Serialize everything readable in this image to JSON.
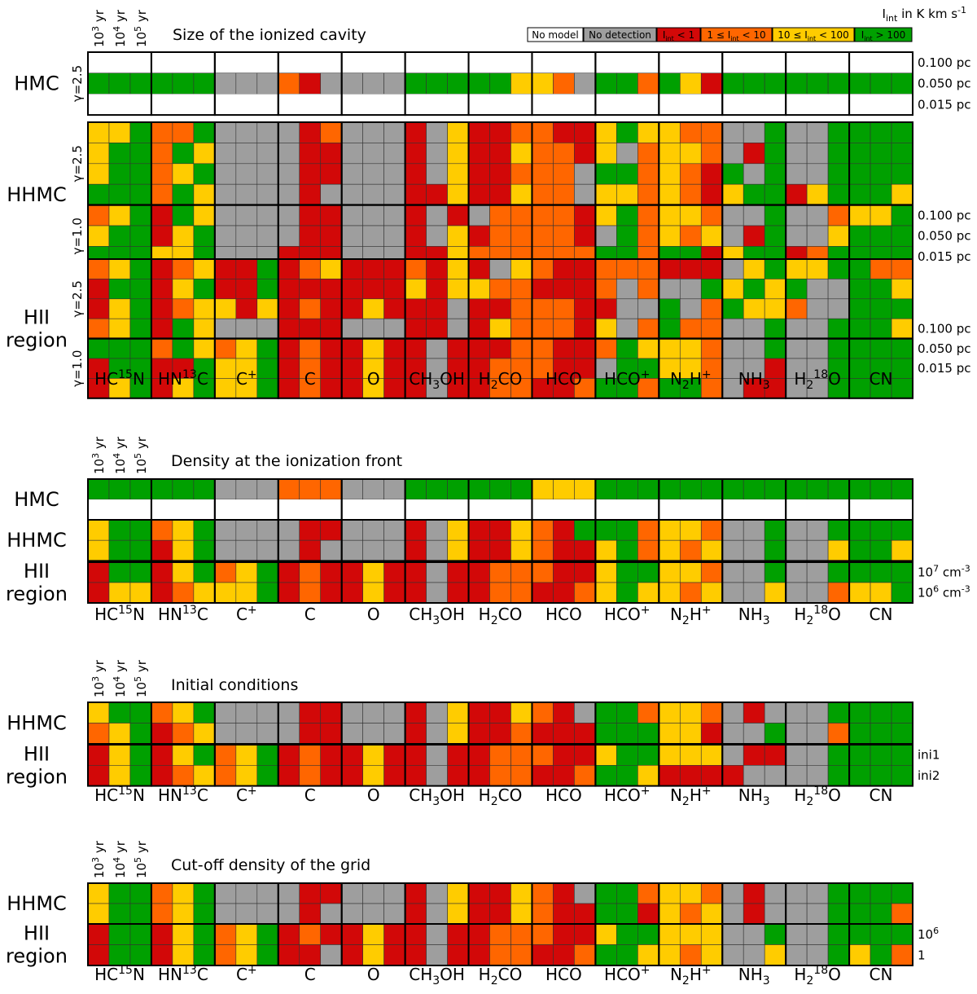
{
  "colors": {
    "W": "#ffffff",
    "G": "#9e9e9e",
    "R": "#d20808",
    "O": "#ff6600",
    "Y": "#ffcc00",
    "E": "#00a000"
  },
  "legend": {
    "title": "I_int in K km s^-1",
    "items": [
      {
        "key": "W",
        "label": "No model"
      },
      {
        "key": "G",
        "label": "No detection"
      },
      {
        "key": "R",
        "label": "I_int < 1"
      },
      {
        "key": "O",
        "label": "1 ≤ I_int < 10"
      },
      {
        "key": "Y",
        "label": "10 ≤ I_int < 100"
      },
      {
        "key": "E",
        "label": "I_int > 100"
      }
    ]
  },
  "time_labels": [
    "10^3 yr",
    "10^4 yr",
    "10^5 yr"
  ],
  "molecules": [
    "HC15N",
    "HN13C",
    "C+",
    "C",
    "O",
    "CH3OH",
    "H2CO",
    "HCO",
    "HCO+",
    "N2H+",
    "NH3",
    "H218O",
    "CN"
  ],
  "chart_data": [
    {
      "type": "heatmap",
      "title": "Size of the ionized cavity",
      "groups": [
        {
          "name": "HMC",
          "sublabels": [
            "γ=2.5"
          ],
          "rows": [
            "WWWWWWWWWWWWWWWWWWWWWWWWWWWWWWWWWWWWWWW",
            "EEEEEEGGGORGGGGEEEEEYYOGEEOEYREEEEEEEEE",
            "WWWWWWWWWWWWWWWWWWWWWWWWWWWWWWWWWWWWWWW"
          ],
          "right_labels": [
            "0.100 pc",
            "0.050 pc",
            "0.015 pc"
          ]
        },
        {
          "name": "HHMC",
          "sublabels": [
            "γ=2.5",
            "γ=1.0"
          ],
          "rows": [
            "YYEOOEGGGGROGGGRGYRROORRYEYYOOGGEGGEEEE",
            "YEEOEYGGGGRRGGGRGYRRYOORYGOYYOGREGGEEEE",
            "YEEOYEGGGGRRGGGRGYRROOOGEEOYOREGEGGEEEE",
            "EEEOEYGGGGRGGGGRRYRRYOOGYYOYORYEERYEEEY",
            "OYEREYGGGGRRGGGRGRGOOOORYEOYYOGGEGGOYYE",
            "YEERYEGGGGRRGGGRGYROOOORGEOYOYGREGGYEEE",
            "EEEYYEGGGRRRGGGRRYOOOOOOEEOEERYEEROEEEE"
          ],
          "right_labels": [
            "",
            "",
            "",
            "",
            "0.100 pc",
            "0.050 pc",
            "0.015 pc"
          ]
        },
        {
          "name": "HII region",
          "sublabels": [
            "γ=2.5",
            "γ=1.0"
          ],
          "rows": [
            "OYEROYRREROYRRRORYRGYORROOORRRGYEYYEEOO",
            "REERYERRERRRRRRYRYYOORRROGOGGEYEYEGGEEY",
            "RYEROYYRYRORRYRRRGRROOORRGGEGOEYYOGGEEE",
            "OYEREYGGGRRRGGGRRGRYOOORYGOEOOGGEGGEEEY",
            "EEEOEYOYERORRYRRGRRROORROEYYYOGGEGGEEEE",
            "REERREYYERORRYRRGRROOORRGEEYYOGGRGGEEEE",
            "RYERYEYYERORRYRRGRROORROEEOEEOGRRGGEEEE"
          ],
          "right_labels": [
            "",
            "",
            "",
            "0.100 pc",
            "0.050 pc",
            "0.015 pc",
            ""
          ]
        }
      ]
    },
    {
      "type": "heatmap",
      "title": "Density at the ionization front",
      "groups": [
        {
          "name": "HMC",
          "sublabels": [],
          "rows": [
            "EEEEEEGGGOOOGGGEEEEEEYYYEEEEEEEEEEEEEEE",
            "WWWWWWWWWWWWWWWWWWWWWWWWWWWWWWWWWWWWWWW"
          ],
          "right_labels": [
            "",
            ""
          ]
        },
        {
          "name": "HHMC",
          "sublabels": [],
          "rows": [
            "YEEOYEGGGGRRGGGRGYRRYOREEEOYYOGGEGGEEEE",
            "YEERYEGGGGRGGGGRGYRRYORRYEOYOYGGEGGYEEY"
          ],
          "right_labels": [
            "",
            ""
          ]
        },
        {
          "name": "HII region",
          "sublabels": [],
          "rows": [
            "REERYEOYERORRYRRGRROOORRYEEYYOGGEGGEEEE",
            "RYYROYYYERORRYRRGRROORROYEYYOYGGYGGOYYE"
          ],
          "right_labels": [
            "10^7 cm^-3",
            "10^6 cm^-3"
          ]
        }
      ]
    },
    {
      "type": "heatmap",
      "title": "Initial conditions",
      "groups": [
        {
          "name": "HHMC",
          "sublabels": [],
          "rows": [
            "YEEOYEGGGGRRGGGRGYRRYORGEEOYYOGRGGGEEEE",
            "OYEROYGGGGRRGGGRGYRRORRREEEYYRGGEGGOEEE"
          ],
          "right_labels": [
            "",
            ""
          ]
        },
        {
          "name": "HII region",
          "sublabels": [],
          "rows": [
            "RYERYEOYERORRYRRGRROOORRYEEYYYGRRGGEEEE",
            "RYEROYOYERORRYRRGRROORROEEYRRRRGGGGEEEE"
          ],
          "right_labels": [
            "ini1",
            "ini2"
          ]
        }
      ]
    },
    {
      "type": "heatmap",
      "title": "Cut-off density of the grid",
      "groups": [
        {
          "name": "HHMC",
          "sublabels": [],
          "rows": [
            "YEEOYEGGGGRRGGGRGYRRYORGEEOYYOGRGGGEEEE",
            "YEEOYEGGGGRGGGGRGYRRYORREERYOYGRGGGEEEO"
          ],
          "right_labels": [
            "",
            ""
          ]
        },
        {
          "name": "HII region",
          "sublabels": [],
          "rows": [
            "REERYEOYERORRYRRGRROOORRYEEYYYGGEGGEEEE",
            "REERYEOYERRGRYRRGRROORROEEYYOYGGYGGEYEO"
          ],
          "right_labels": [
            "10^6",
            "1"
          ]
        }
      ]
    }
  ]
}
